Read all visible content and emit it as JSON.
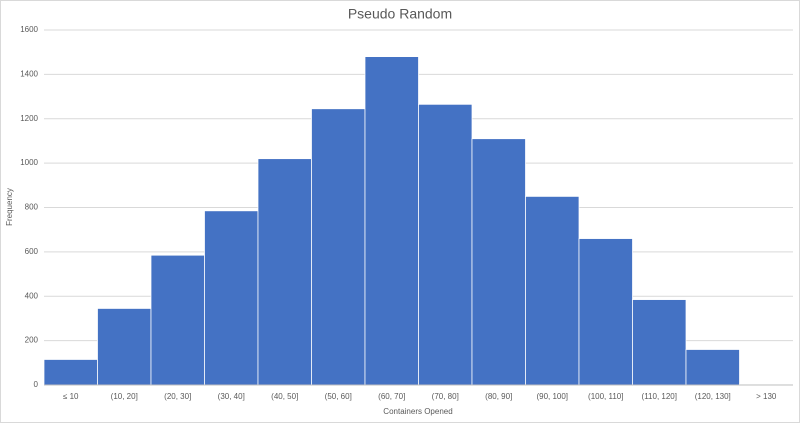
{
  "chart_data": {
    "type": "bar",
    "title": "Pseudo Random",
    "x_label": "Containers Opened",
    "y_label": "Frequency",
    "categories": [
      "≤ 10",
      "(10, 20]",
      "(20, 30]",
      "(30, 40]",
      "(40, 50]",
      "(50, 60]",
      "(60, 70]",
      "(70, 80]",
      "(80, 90]",
      "(90, 100]",
      "(100, 110]",
      "(110, 120]",
      "(120, 130]",
      "> 130"
    ],
    "values": [
      115,
      345,
      585,
      785,
      1020,
      1245,
      1480,
      1265,
      1110,
      850,
      660,
      385,
      160,
      4
    ],
    "color": "#4472c4",
    "ylim": [
      0,
      1600
    ],
    "yticks": [
      0,
      200,
      400,
      600,
      800,
      1000,
      1200,
      1400,
      1600
    ],
    "grid": true
  }
}
